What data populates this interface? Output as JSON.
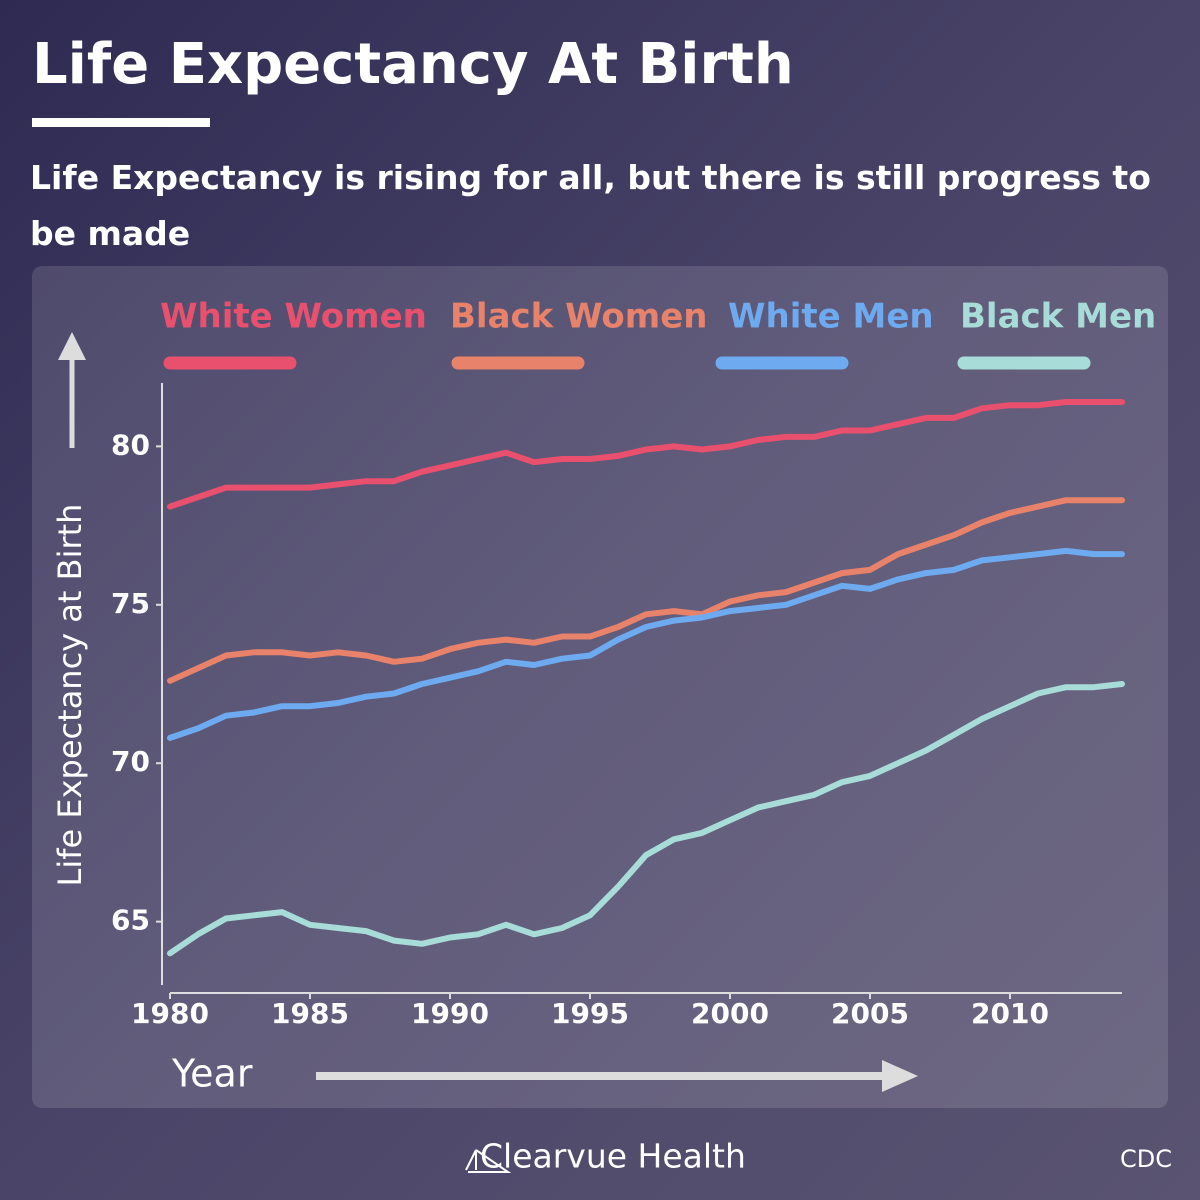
{
  "chart_data": {
    "type": "line",
    "title": "Life Expectancy At Birth",
    "subtitle": "Life Expectancy is rising for all, but there is still progress to be made",
    "y_label": "Life Expectancy at Birth",
    "x_label": "Year",
    "brand": "Clearvue Health",
    "source": "CDC",
    "x": [
      1980,
      1981,
      1982,
      1983,
      1984,
      1985,
      1986,
      1987,
      1988,
      1989,
      1990,
      1991,
      1992,
      1993,
      1994,
      1995,
      1996,
      1997,
      1998,
      1999,
      2000,
      2001,
      2002,
      2003,
      2004,
      2005,
      2006,
      2007,
      2008,
      2009,
      2010,
      2011,
      2012,
      2013,
      2014
    ],
    "xlim": [
      1980,
      2014
    ],
    "xticks": [
      1980,
      1985,
      1990,
      1995,
      2000,
      2005,
      2010
    ],
    "ylim": [
      63,
      82
    ],
    "yticks": [
      65,
      70,
      75,
      80
    ],
    "series": [
      {
        "name": "White Women",
        "color": "#e8506e",
        "values": [
          78.1,
          78.4,
          78.7,
          78.7,
          78.7,
          78.7,
          78.8,
          78.9,
          78.9,
          79.2,
          79.4,
          79.6,
          79.8,
          79.5,
          79.6,
          79.6,
          79.7,
          79.9,
          80.0,
          79.9,
          80.0,
          80.2,
          80.3,
          80.3,
          80.5,
          80.5,
          80.7,
          80.9,
          80.9,
          81.2,
          81.3,
          81.3,
          81.4,
          81.4,
          81.4
        ]
      },
      {
        "name": "Black Women",
        "color": "#e8826a",
        "values": [
          72.6,
          73.0,
          73.4,
          73.5,
          73.5,
          73.4,
          73.5,
          73.4,
          73.2,
          73.3,
          73.6,
          73.8,
          73.9,
          73.8,
          74.0,
          74.0,
          74.3,
          74.7,
          74.8,
          74.7,
          75.1,
          75.3,
          75.4,
          75.7,
          76.0,
          76.1,
          76.6,
          76.9,
          77.2,
          77.6,
          77.9,
          78.1,
          78.3,
          78.3,
          78.3
        ]
      },
      {
        "name": "White Men",
        "color": "#6eaaf0",
        "values": [
          70.8,
          71.1,
          71.5,
          71.6,
          71.8,
          71.8,
          71.9,
          72.1,
          72.2,
          72.5,
          72.7,
          72.9,
          73.2,
          73.1,
          73.3,
          73.4,
          73.9,
          74.3,
          74.5,
          74.6,
          74.8,
          74.9,
          75.0,
          75.3,
          75.6,
          75.5,
          75.8,
          76.0,
          76.1,
          76.4,
          76.5,
          76.6,
          76.7,
          76.6,
          76.6
        ]
      },
      {
        "name": "Black Men",
        "color": "#a8dcd8",
        "values": [
          64.0,
          64.6,
          65.1,
          65.2,
          65.3,
          64.9,
          64.8,
          64.7,
          64.4,
          64.3,
          64.5,
          64.6,
          64.9,
          64.6,
          64.8,
          65.2,
          66.1,
          67.1,
          67.6,
          67.8,
          68.2,
          68.6,
          68.8,
          69.0,
          69.4,
          69.6,
          70.0,
          70.4,
          70.9,
          71.4,
          71.8,
          72.2,
          72.4,
          72.4,
          72.5
        ]
      }
    ]
  }
}
